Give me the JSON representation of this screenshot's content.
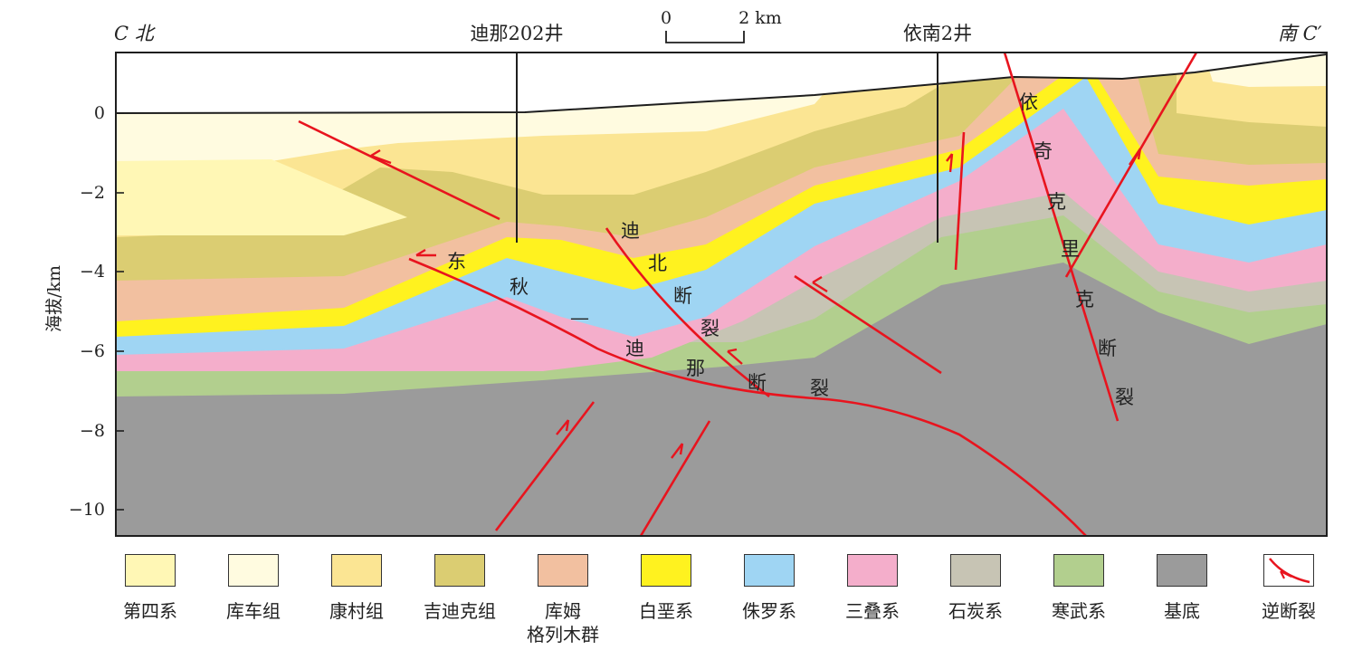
{
  "header": {
    "left_label": "C 北",
    "right_label": "南 C′",
    "well_1": "迪那202井",
    "well_2": "依南2井",
    "scale_0": "0",
    "scale_2": "2 km"
  },
  "axis": {
    "ylabel": "海拔/km",
    "ticks": [
      "0",
      "−2",
      "−4",
      "−6",
      "−8",
      "−10"
    ]
  },
  "faults": {
    "dongqiu_1": "东",
    "dongqiu_2": "秋",
    "dongqiu_3": "—",
    "dongqiu_4": "迪",
    "dongqiu_5": "那",
    "dongqiu_6": "断",
    "dongqiu_7": "裂",
    "dibei_1": "迪",
    "dibei_2": "北",
    "dibei_3": "断",
    "dibei_4": "裂",
    "yiqi_1": "依",
    "yiqi_2": "奇",
    "yiqi_3": "克",
    "yiqi_4": "里",
    "yiqi_5": "克",
    "yiqi_6": "断",
    "yiqi_7": "裂"
  },
  "legend": [
    {
      "label": "第四系",
      "color": "#fff7b5"
    },
    {
      "label": "库车组",
      "color": "#fffbe0"
    },
    {
      "label": "康村组",
      "color": "#fbe593"
    },
    {
      "label": "吉迪克组",
      "color": "#dbcd72"
    },
    {
      "label": "库姆",
      "label2": "格列木群",
      "color": "#f2c0a0"
    },
    {
      "label": "白垩系",
      "color": "#fff21f"
    },
    {
      "label": "侏罗系",
      "color": "#9fd5f3"
    },
    {
      "label": "三叠系",
      "color": "#f4aecb"
    },
    {
      "label": "石炭系",
      "color": "#c7c4b4"
    },
    {
      "label": "寒武系",
      "color": "#b2cf8e"
    },
    {
      "label": "基底",
      "color": "#9b9b9b"
    },
    {
      "label": "逆断裂",
      "color": "#ffffff"
    }
  ]
}
